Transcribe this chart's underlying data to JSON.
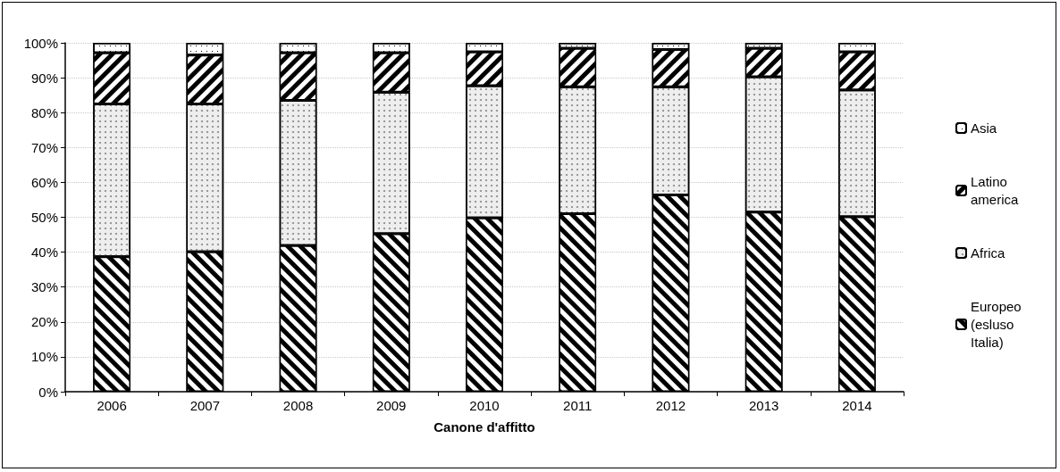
{
  "chart_data": {
    "type": "bar",
    "stacked": true,
    "xlabel": "Canone d'affitto",
    "categories": [
      "2006",
      "2007",
      "2008",
      "2009",
      "2010",
      "2011",
      "2012",
      "2013",
      "2014"
    ],
    "series": [
      {
        "name": "Europeo (esluso Italia)",
        "color": "#000000",
        "values": [
          38.7,
          40.1,
          41.9,
          45.3,
          49.8,
          51.0,
          56.4,
          51.5,
          50.1
        ]
      },
      {
        "name": "Africa",
        "color": "#eeeeee",
        "values": [
          43.8,
          42.4,
          41.6,
          40.6,
          37.9,
          36.4,
          31.0,
          38.8,
          36.4
        ]
      },
      {
        "name": "Latino america",
        "color": "#000000",
        "values": [
          14.6,
          14.0,
          13.6,
          11.2,
          9.7,
          11.0,
          10.7,
          8.1,
          10.9
        ]
      },
      {
        "name": "Asia",
        "color": "#ffffff",
        "values": [
          2.9,
          3.5,
          2.9,
          2.9,
          2.6,
          1.6,
          1.9,
          1.6,
          2.6
        ]
      }
    ],
    "ylim": [
      0,
      100
    ],
    "yticks": [
      {
        "value": 0,
        "label": "0%"
      },
      {
        "value": 10,
        "label": "10%"
      },
      {
        "value": 20,
        "label": "20%"
      },
      {
        "value": 30,
        "label": "30%"
      },
      {
        "value": 40,
        "label": "40%"
      },
      {
        "value": 50,
        "label": "50%"
      },
      {
        "value": 60,
        "label": "60%"
      },
      {
        "value": 70,
        "label": "70%"
      },
      {
        "value": 80,
        "label": "80%"
      },
      {
        "value": 90,
        "label": "90%"
      },
      {
        "value": 100,
        "label": "100%"
      }
    ],
    "grid": "y",
    "legend": "right"
  }
}
